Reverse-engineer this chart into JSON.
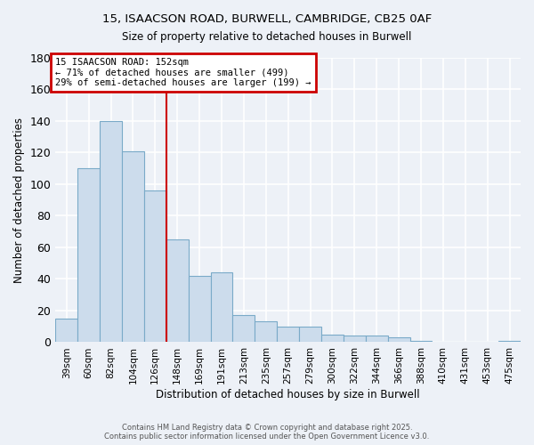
{
  "title_line1": "15, ISAACSON ROAD, BURWELL, CAMBRIDGE, CB25 0AF",
  "title_line2": "Size of property relative to detached houses in Burwell",
  "categories": [
    "39sqm",
    "60sqm",
    "82sqm",
    "104sqm",
    "126sqm",
    "148sqm",
    "169sqm",
    "191sqm",
    "213sqm",
    "235sqm",
    "257sqm",
    "279sqm",
    "300sqm",
    "322sqm",
    "344sqm",
    "366sqm",
    "388sqm",
    "410sqm",
    "431sqm",
    "453sqm",
    "475sqm"
  ],
  "values": [
    15,
    110,
    140,
    121,
    96,
    65,
    42,
    44,
    17,
    13,
    10,
    10,
    5,
    4,
    4,
    3,
    1,
    0,
    0,
    0,
    1
  ],
  "bar_color": "#ccdcec",
  "bar_edge_color": "#7aaac8",
  "ylabel": "Number of detached properties",
  "xlabel": "Distribution of detached houses by size in Burwell",
  "ylim": [
    0,
    180
  ],
  "yticks": [
    0,
    20,
    40,
    60,
    80,
    100,
    120,
    140,
    160,
    180
  ],
  "vline_x_idx": 5,
  "annotation_title": "15 ISAACSON ROAD: 152sqm",
  "annotation_line1": "← 71% of detached houses are smaller (499)",
  "annotation_line2": "29% of semi-detached houses are larger (199) →",
  "annotation_box_color": "#ffffff",
  "annotation_border_color": "#cc0000",
  "vline_color": "#cc0000",
  "background_color": "#edf1f7",
  "grid_color": "#ffffff",
  "footer_line1": "Contains HM Land Registry data © Crown copyright and database right 2025.",
  "footer_line2": "Contains public sector information licensed under the Open Government Licence v3.0."
}
